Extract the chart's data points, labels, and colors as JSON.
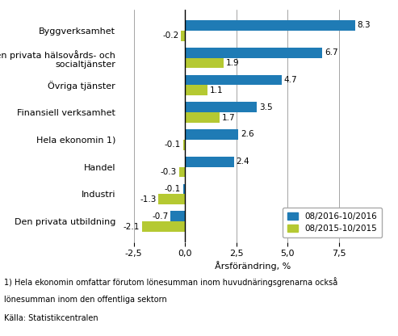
{
  "categories": [
    "Byggverksamhet",
    "Den privata hälsovårds- och\nsocialtjänster",
    "Övriga tjänster",
    "Finansiell verksamhet",
    "Hela ekonomin 1)",
    "Handel",
    "Industri",
    "Den privata utbildning"
  ],
  "blue_values": [
    8.3,
    6.7,
    4.7,
    3.5,
    2.6,
    2.4,
    -0.1,
    -0.7
  ],
  "green_values": [
    -0.2,
    1.9,
    1.1,
    1.7,
    -0.1,
    -0.3,
    -1.3,
    -2.1
  ],
  "blue_color": "#1f7bb5",
  "green_color": "#b5c932",
  "legend_labels": [
    "08/2016-10/2016",
    "08/2015-10/2015"
  ],
  "xlabel": "Årsförändring, %",
  "xlim": [
    -3.2,
    9.8
  ],
  "xticks": [
    -2.5,
    0.0,
    2.5,
    5.0,
    7.5
  ],
  "xtick_labels": [
    "-2,5",
    "0,0",
    "2,5",
    "5,0",
    "7,5"
  ],
  "footnote1": "1) Hela ekonomin omfattar förutom lönesumman inom huvudnäringsgrenarna också",
  "footnote2": "lönesumman inom den offentliga sektorn",
  "source": "Källa: Statistikcentralen",
  "bar_height": 0.38,
  "fontsize_labels": 8.0,
  "fontsize_ticks": 8.0,
  "fontsize_values": 7.5,
  "fontsize_footnote": 7.0
}
